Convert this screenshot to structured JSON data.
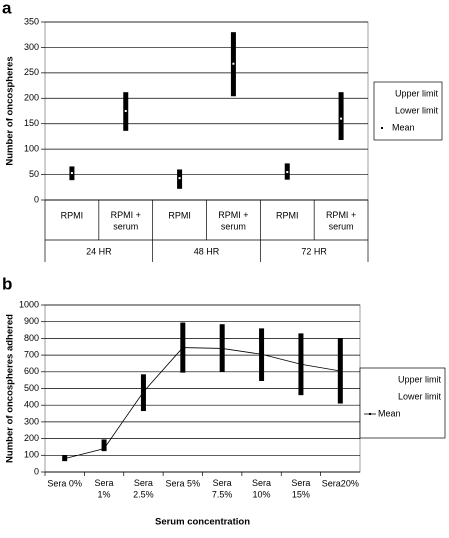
{
  "chart_data": [
    {
      "type": "hilo",
      "panel": "a",
      "y_label": "Number of oncospheres",
      "categories": [
        "RPMI",
        "RPMI +\nserum",
        "RPMI",
        "RPMI +\nserum",
        "RPMI",
        "RPMI +\nserum"
      ],
      "groups": [
        "24 HR",
        "48 HR",
        "72 HR"
      ],
      "series": [
        {
          "name": "Upper limit",
          "color": "#000000",
          "values": [
            66,
            212,
            60,
            330,
            72,
            212
          ]
        },
        {
          "name": "Lower limit",
          "color": "#000000",
          "values": [
            39,
            136,
            22,
            204,
            40,
            118
          ]
        },
        {
          "name": "Mean",
          "color": "#000000",
          "values": [
            53,
            175,
            43,
            268,
            55,
            160
          ]
        }
      ],
      "ylim": [
        0,
        350
      ],
      "yticks": [
        0,
        50,
        100,
        150,
        200,
        250,
        300,
        350
      ],
      "grid": true,
      "legend": "right"
    },
    {
      "type": "hilo",
      "panel": "b",
      "y_label": "Number of oncospheres adhered",
      "x_label": "Serum concentration",
      "categories": [
        "Sera 0%",
        "Sera\n1%",
        "Sera\n2.5%",
        "Sera 5%",
        "Sera\n7.5%",
        "Sera\n10%",
        "Sera\n15%",
        "Sera20%"
      ],
      "series": [
        {
          "name": "Upper limit",
          "color": "#000000",
          "values": [
            100,
            195,
            585,
            895,
            885,
            860,
            830,
            800
          ]
        },
        {
          "name": "Lower limit",
          "color": "#000000",
          "values": [
            65,
            125,
            365,
            595,
            600,
            545,
            460,
            410
          ]
        },
        {
          "name": "Mean",
          "color": "#000000",
          "values": [
            80,
            140,
            480,
            745,
            740,
            705,
            645,
            605
          ]
        }
      ],
      "mean_line": true,
      "ylim": [
        0,
        1000
      ],
      "yticks": [
        0,
        100,
        200,
        300,
        400,
        500,
        600,
        700,
        800,
        900,
        1000
      ],
      "grid": true,
      "legend": "right"
    }
  ]
}
